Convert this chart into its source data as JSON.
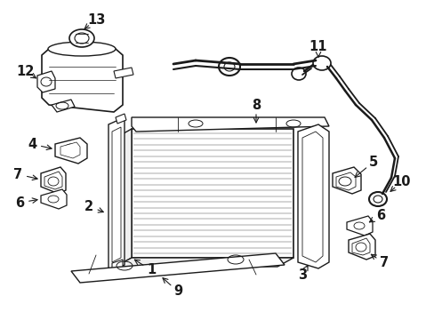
{
  "bg_color": "#ffffff",
  "line_color": "#1a1a1a",
  "fig_width": 4.89,
  "fig_height": 3.6,
  "dpi": 100,
  "label_fontsize": 10.5
}
